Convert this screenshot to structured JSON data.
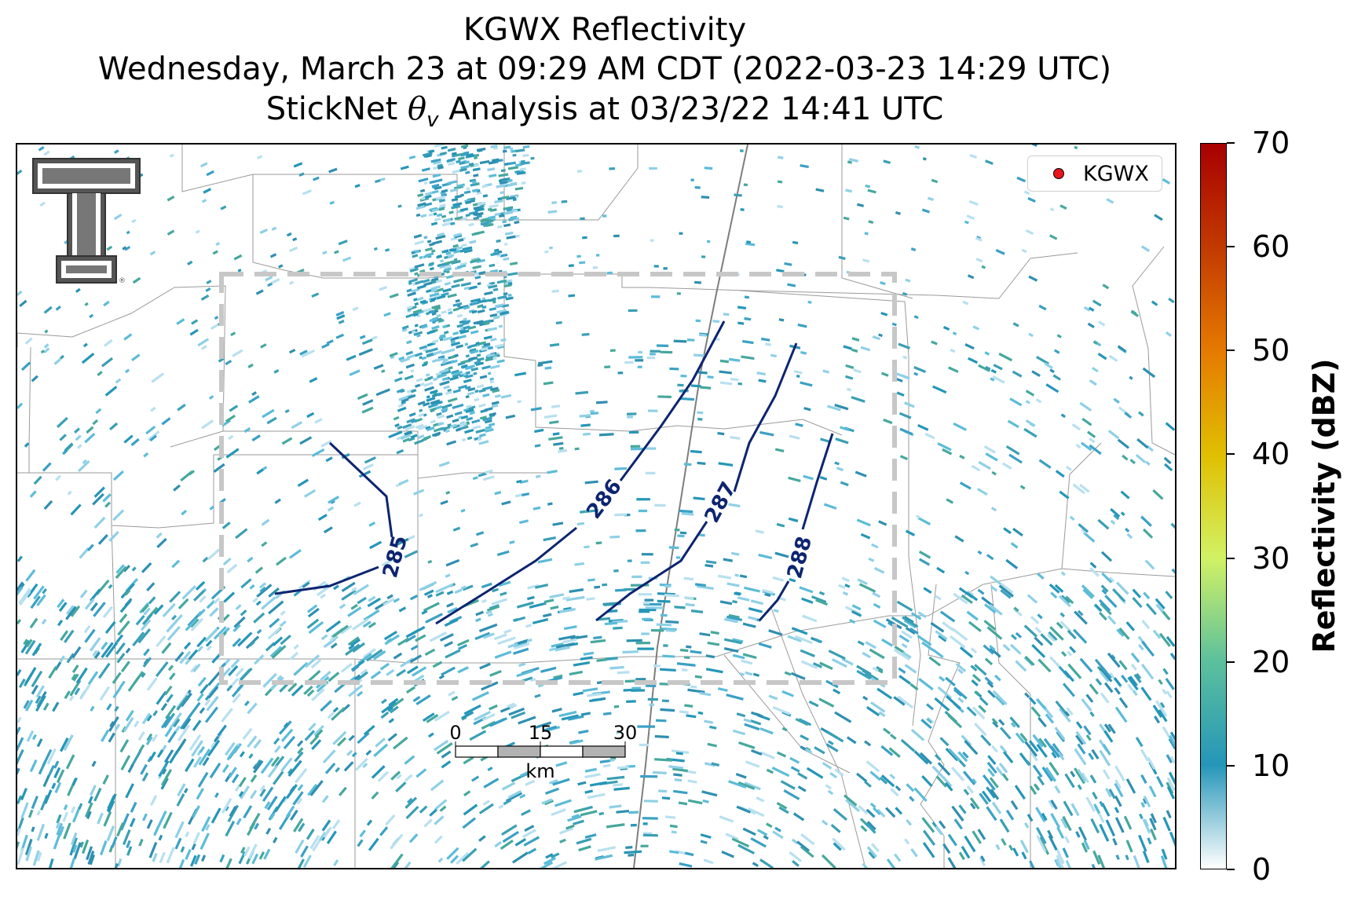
{
  "title": {
    "line1": "KGWX Reflectivity",
    "line2": "Wednesday, March 23 at 09:29 AM CDT (2022-03-23 14:29 UTC)",
    "line3_prefix": "StickNet ",
    "line3_symbol": "θ",
    "line3_subscript": "v",
    "line3_suffix": " Analysis at 03/23/22 14:41 UTC"
  },
  "legend": {
    "label": "KGWX",
    "marker_color": "#e8151b"
  },
  "colorbar": {
    "title": "Reflectivity (dBZ)",
    "min": 0,
    "max": 70,
    "ticks": [
      "0",
      "10",
      "20",
      "30",
      "40",
      "50",
      "60",
      "70"
    ],
    "colors": [
      "#ffffff",
      "#2596b8",
      "#5cc09d",
      "#d2f264",
      "#e0bf00",
      "#e57a00",
      "#c23a00",
      "#a80000"
    ]
  },
  "scale_bar": {
    "ticks": [
      "0",
      "15",
      "30"
    ],
    "unit": "km"
  },
  "contours": {
    "color": "#0d2470",
    "labels": [
      "285",
      "286",
      "287",
      "288"
    ]
  },
  "logo": {
    "name": "Texas Tech Double T"
  }
}
